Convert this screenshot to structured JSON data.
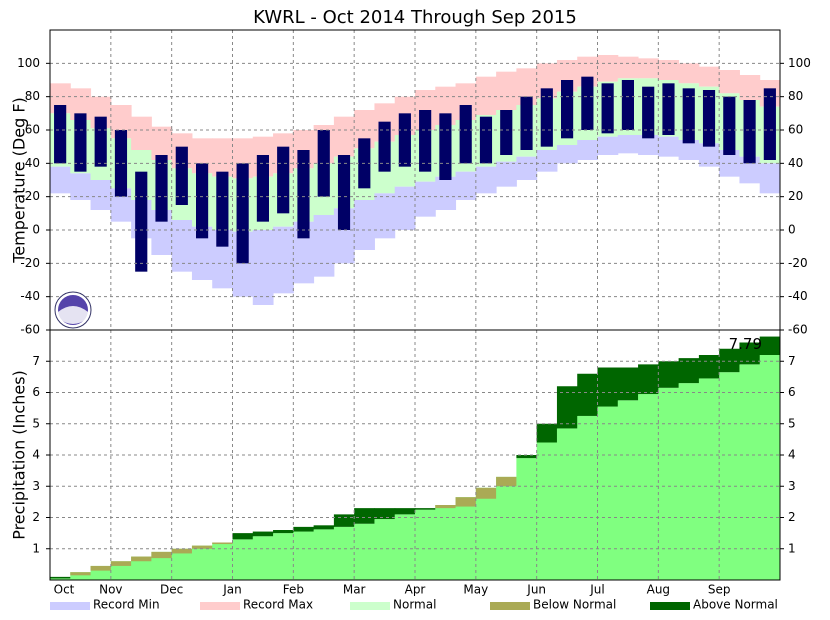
{
  "chart_data": [
    {
      "type": "temperature-range",
      "title": "KWRL - Oct 2014 Through Sep 2015",
      "y_label": "Temperature (Deg F)",
      "ylim": [
        -60,
        120
      ],
      "yticks": [
        -60,
        -40,
        -20,
        0,
        20,
        40,
        60,
        80,
        100
      ],
      "grid": true,
      "series": [
        {
          "color": "#ffcccc",
          "values": [
            88,
            85,
            80,
            75,
            68,
            62,
            58,
            55,
            55,
            55,
            56,
            58,
            60,
            63,
            68,
            72,
            76,
            80,
            84,
            86,
            88,
            92,
            95,
            97,
            100,
            102,
            104,
            105,
            104,
            103,
            102,
            100,
            98,
            96,
            93,
            90
          ]
        },
        {
          "color": "#ccccff",
          "values": [
            22,
            18,
            12,
            5,
            -5,
            -15,
            -25,
            -30,
            -35,
            -40,
            -45,
            -38,
            -32,
            -28,
            -20,
            -12,
            -5,
            0,
            8,
            12,
            18,
            22,
            26,
            30,
            35,
            40,
            42,
            45,
            46,
            45,
            44,
            42,
            38,
            32,
            28,
            22
          ]
        },
        {
          "color": "#ccffcc",
          "values": [
            70,
            66,
            61,
            55,
            48,
            42,
            37,
            34,
            32,
            31,
            32,
            34,
            37,
            40,
            44,
            49,
            53,
            57,
            60,
            63,
            66,
            69,
            72,
            75,
            79,
            83,
            86,
            89,
            91,
            91,
            90,
            88,
            86,
            82,
            78,
            74
          ],
          "low_values": [
            38,
            34,
            30,
            25,
            18,
            12,
            6,
            2,
            0,
            -1,
            0,
            2,
            5,
            9,
            13,
            18,
            22,
            26,
            29,
            32,
            35,
            38,
            41,
            44,
            48,
            51,
            54,
            56,
            57,
            57,
            56,
            54,
            52,
            48,
            44,
            40
          ]
        },
        {
          "color": "#000066",
          "values": [
            75,
            70,
            68,
            60,
            35,
            45,
            50,
            40,
            35,
            40,
            45,
            50,
            48,
            60,
            45,
            55,
            65,
            70,
            72,
            70,
            75,
            68,
            72,
            80,
            85,
            90,
            92,
            88,
            90,
            86,
            88,
            85,
            84,
            80,
            78,
            85
          ],
          "low_values": [
            40,
            35,
            38,
            20,
            -25,
            5,
            15,
            -5,
            -10,
            -20,
            5,
            10,
            -5,
            20,
            0,
            25,
            35,
            38,
            35,
            30,
            40,
            40,
            45,
            48,
            50,
            55,
            60,
            58,
            60,
            55,
            57,
            52,
            50,
            45,
            40,
            42
          ]
        }
      ]
    },
    {
      "type": "cumulative-precip",
      "y_label": "Precipitation (Inches)",
      "ylim": [
        0,
        8
      ],
      "yticks": [
        1,
        2,
        3,
        4,
        5,
        6,
        7
      ],
      "grid": true,
      "categories": [
        "Oct",
        null,
        null,
        "Nov",
        null,
        null,
        "Dec",
        null,
        null,
        "Jan",
        null,
        null,
        "Feb",
        null,
        null,
        "Mar",
        null,
        null,
        "Apr",
        null,
        null,
        "May",
        null,
        null,
        "Jun",
        null,
        null,
        "Jul",
        null,
        null,
        "Aug",
        null,
        null,
        "Sep",
        null,
        null
      ],
      "normal_color": "#80ff80",
      "below_color": "#aaaa55",
      "above_color": "#006600",
      "series": [
        {
          "values": [
            0.05,
            0.25,
            0.45,
            0.6,
            0.75,
            0.9,
            1.0,
            1.1,
            1.2,
            1.3,
            1.4,
            1.5,
            1.55,
            1.62,
            1.7,
            1.8,
            1.95,
            2.1,
            2.25,
            2.4,
            2.65,
            2.95,
            3.3,
            3.9,
            4.4,
            4.85,
            5.25,
            5.55,
            5.75,
            5.95,
            6.15,
            6.3,
            6.45,
            6.65,
            6.9,
            7.2
          ]
        },
        {
          "values": [
            0.1,
            0.15,
            0.3,
            0.45,
            0.6,
            0.7,
            0.85,
            1.0,
            1.15,
            1.5,
            1.55,
            1.6,
            1.7,
            1.75,
            2.1,
            2.3,
            2.3,
            2.3,
            2.3,
            2.3,
            2.35,
            2.6,
            3.0,
            4.0,
            5.0,
            6.2,
            6.6,
            6.8,
            6.8,
            6.9,
            7.0,
            7.1,
            7.2,
            7.4,
            7.6,
            7.79
          ]
        }
      ]
    }
  ],
  "legend": [
    {
      "name": "Record Min",
      "color": "#ccccff"
    },
    {
      "name": "Record Max",
      "color": "#ffcccc"
    },
    {
      "name": "Normal",
      "color": "#ccffcc"
    },
    {
      "name": "Below Normal",
      "color": "#aaaa55"
    },
    {
      "name": "Above Normal",
      "color": "#006600"
    }
  ]
}
